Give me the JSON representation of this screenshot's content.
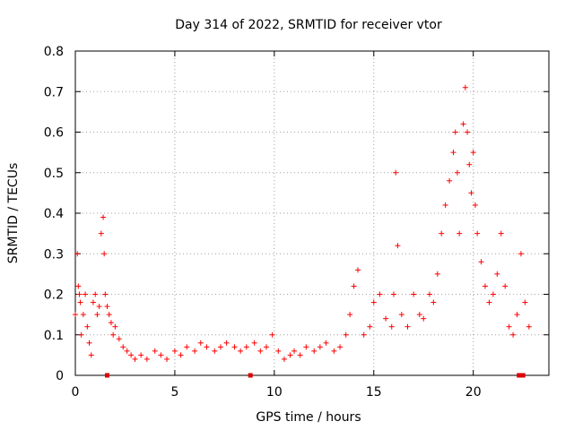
{
  "chart_data": {
    "type": "scatter",
    "title": "Day 314 of 2022, SRMTID for receiver vtor",
    "xlabel": "GPS time / hours",
    "ylabel": "SRMTID / TECUs",
    "xlim": [
      0,
      23.8
    ],
    "ylim": [
      0,
      0.8
    ],
    "x_ticks": [
      0,
      5,
      10,
      15,
      20
    ],
    "y_ticks": [
      0,
      0.1,
      0.2,
      0.3,
      0.4,
      0.5,
      0.6,
      0.7,
      0.8
    ],
    "x_tick_labels": [
      "0",
      "5",
      "10",
      "15",
      "20"
    ],
    "y_tick_labels": [
      "0",
      "0.1",
      "0.2",
      "0.3",
      "0.4",
      "0.5",
      "0.6",
      "0.7",
      "0.8"
    ],
    "grid": true,
    "marker": "+",
    "color": "#ff0000",
    "series": [
      {
        "name": "SRMTID",
        "x": [
          0.0,
          0.1,
          0.15,
          0.2,
          0.25,
          0.3,
          0.4,
          0.5,
          0.6,
          0.7,
          0.8,
          0.9,
          1.0,
          1.1,
          1.2,
          1.3,
          1.4,
          1.45,
          1.5,
          1.6,
          1.7,
          1.8,
          1.9,
          2.0,
          2.2,
          2.4,
          2.6,
          2.8,
          3.0,
          3.3,
          3.6,
          4.0,
          4.3,
          4.6,
          5.0,
          5.3,
          5.6,
          6.0,
          6.3,
          6.6,
          7.0,
          7.3,
          7.6,
          8.0,
          8.3,
          8.6,
          9.0,
          9.3,
          9.6,
          9.9,
          10.2,
          10.5,
          10.8,
          11.0,
          11.3,
          11.6,
          12.0,
          12.3,
          12.6,
          13.0,
          13.3,
          13.6,
          13.8,
          14.0,
          14.2,
          14.5,
          14.8,
          15.0,
          15.3,
          15.6,
          15.9,
          16.0,
          16.1,
          16.2,
          16.4,
          16.7,
          17.0,
          17.3,
          17.5,
          17.8,
          18.0,
          18.2,
          18.4,
          18.6,
          18.8,
          19.0,
          19.1,
          19.2,
          19.3,
          19.5,
          19.6,
          19.7,
          19.8,
          19.9,
          20.0,
          20.1,
          20.2,
          20.4,
          20.6,
          20.8,
          21.0,
          21.2,
          21.4,
          21.6,
          21.8,
          22.0,
          22.2,
          22.4,
          22.6,
          22.8
        ],
        "y": [
          0.15,
          0.3,
          0.22,
          0.2,
          0.18,
          0.1,
          0.15,
          0.2,
          0.12,
          0.08,
          0.05,
          0.18,
          0.2,
          0.15,
          0.17,
          0.35,
          0.39,
          0.3,
          0.2,
          0.17,
          0.15,
          0.13,
          0.1,
          0.12,
          0.09,
          0.07,
          0.06,
          0.05,
          0.04,
          0.05,
          0.04,
          0.06,
          0.05,
          0.04,
          0.06,
          0.05,
          0.07,
          0.06,
          0.08,
          0.07,
          0.06,
          0.07,
          0.08,
          0.07,
          0.06,
          0.07,
          0.08,
          0.06,
          0.07,
          0.1,
          0.06,
          0.04,
          0.05,
          0.06,
          0.05,
          0.07,
          0.06,
          0.07,
          0.08,
          0.06,
          0.07,
          0.1,
          0.15,
          0.22,
          0.26,
          0.1,
          0.12,
          0.18,
          0.2,
          0.14,
          0.12,
          0.2,
          0.5,
          0.32,
          0.15,
          0.12,
          0.2,
          0.15,
          0.14,
          0.2,
          0.18,
          0.25,
          0.35,
          0.42,
          0.48,
          0.55,
          0.6,
          0.5,
          0.35,
          0.62,
          0.71,
          0.6,
          0.52,
          0.45,
          0.55,
          0.42,
          0.35,
          0.28,
          0.22,
          0.18,
          0.2,
          0.25,
          0.35,
          0.22,
          0.12,
          0.1,
          0.15,
          0.3,
          0.18,
          0.12
        ]
      }
    ],
    "axis_markers_x": [
      1.6,
      8.8,
      22.3,
      22.5
    ]
  }
}
